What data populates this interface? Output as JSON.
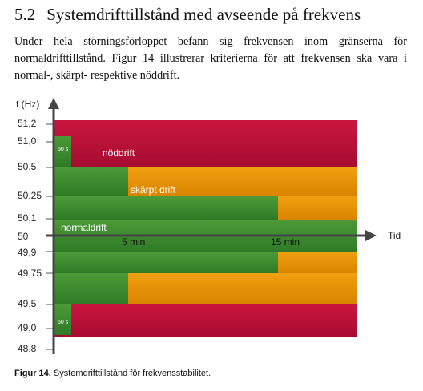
{
  "heading": {
    "number": "5.2",
    "title": "Systemdrifttillstånd med avseende på frekvens"
  },
  "paragraph": "Under hela störningsförloppet befann sig frekvensen inom gränserna för normaldrifttillstånd. Figur 14 illustrerar kriterierna för att frekvensen ska vara i normal-, skärpt- respektive nöddrift.",
  "diagram": {
    "y_axis_label": "f (Hz)",
    "x_axis_label": "Tid",
    "y_ticks": [
      "51,2",
      "51,0",
      "50,5",
      "50,25",
      "50,1",
      "50",
      "49,9",
      "49,75",
      "49,5",
      "49,0",
      "48,8"
    ],
    "zones": {
      "emergency": "nöddrift",
      "alert": "skärpt drift",
      "normal": "normaldrift"
    },
    "time_marks": [
      "5 min",
      "15 min"
    ],
    "durations": [
      "60 s",
      "60 s"
    ]
  },
  "caption": {
    "label": "Figur 14.",
    "text": "Systemdrifttillstånd för frekvensstabilitet."
  }
}
